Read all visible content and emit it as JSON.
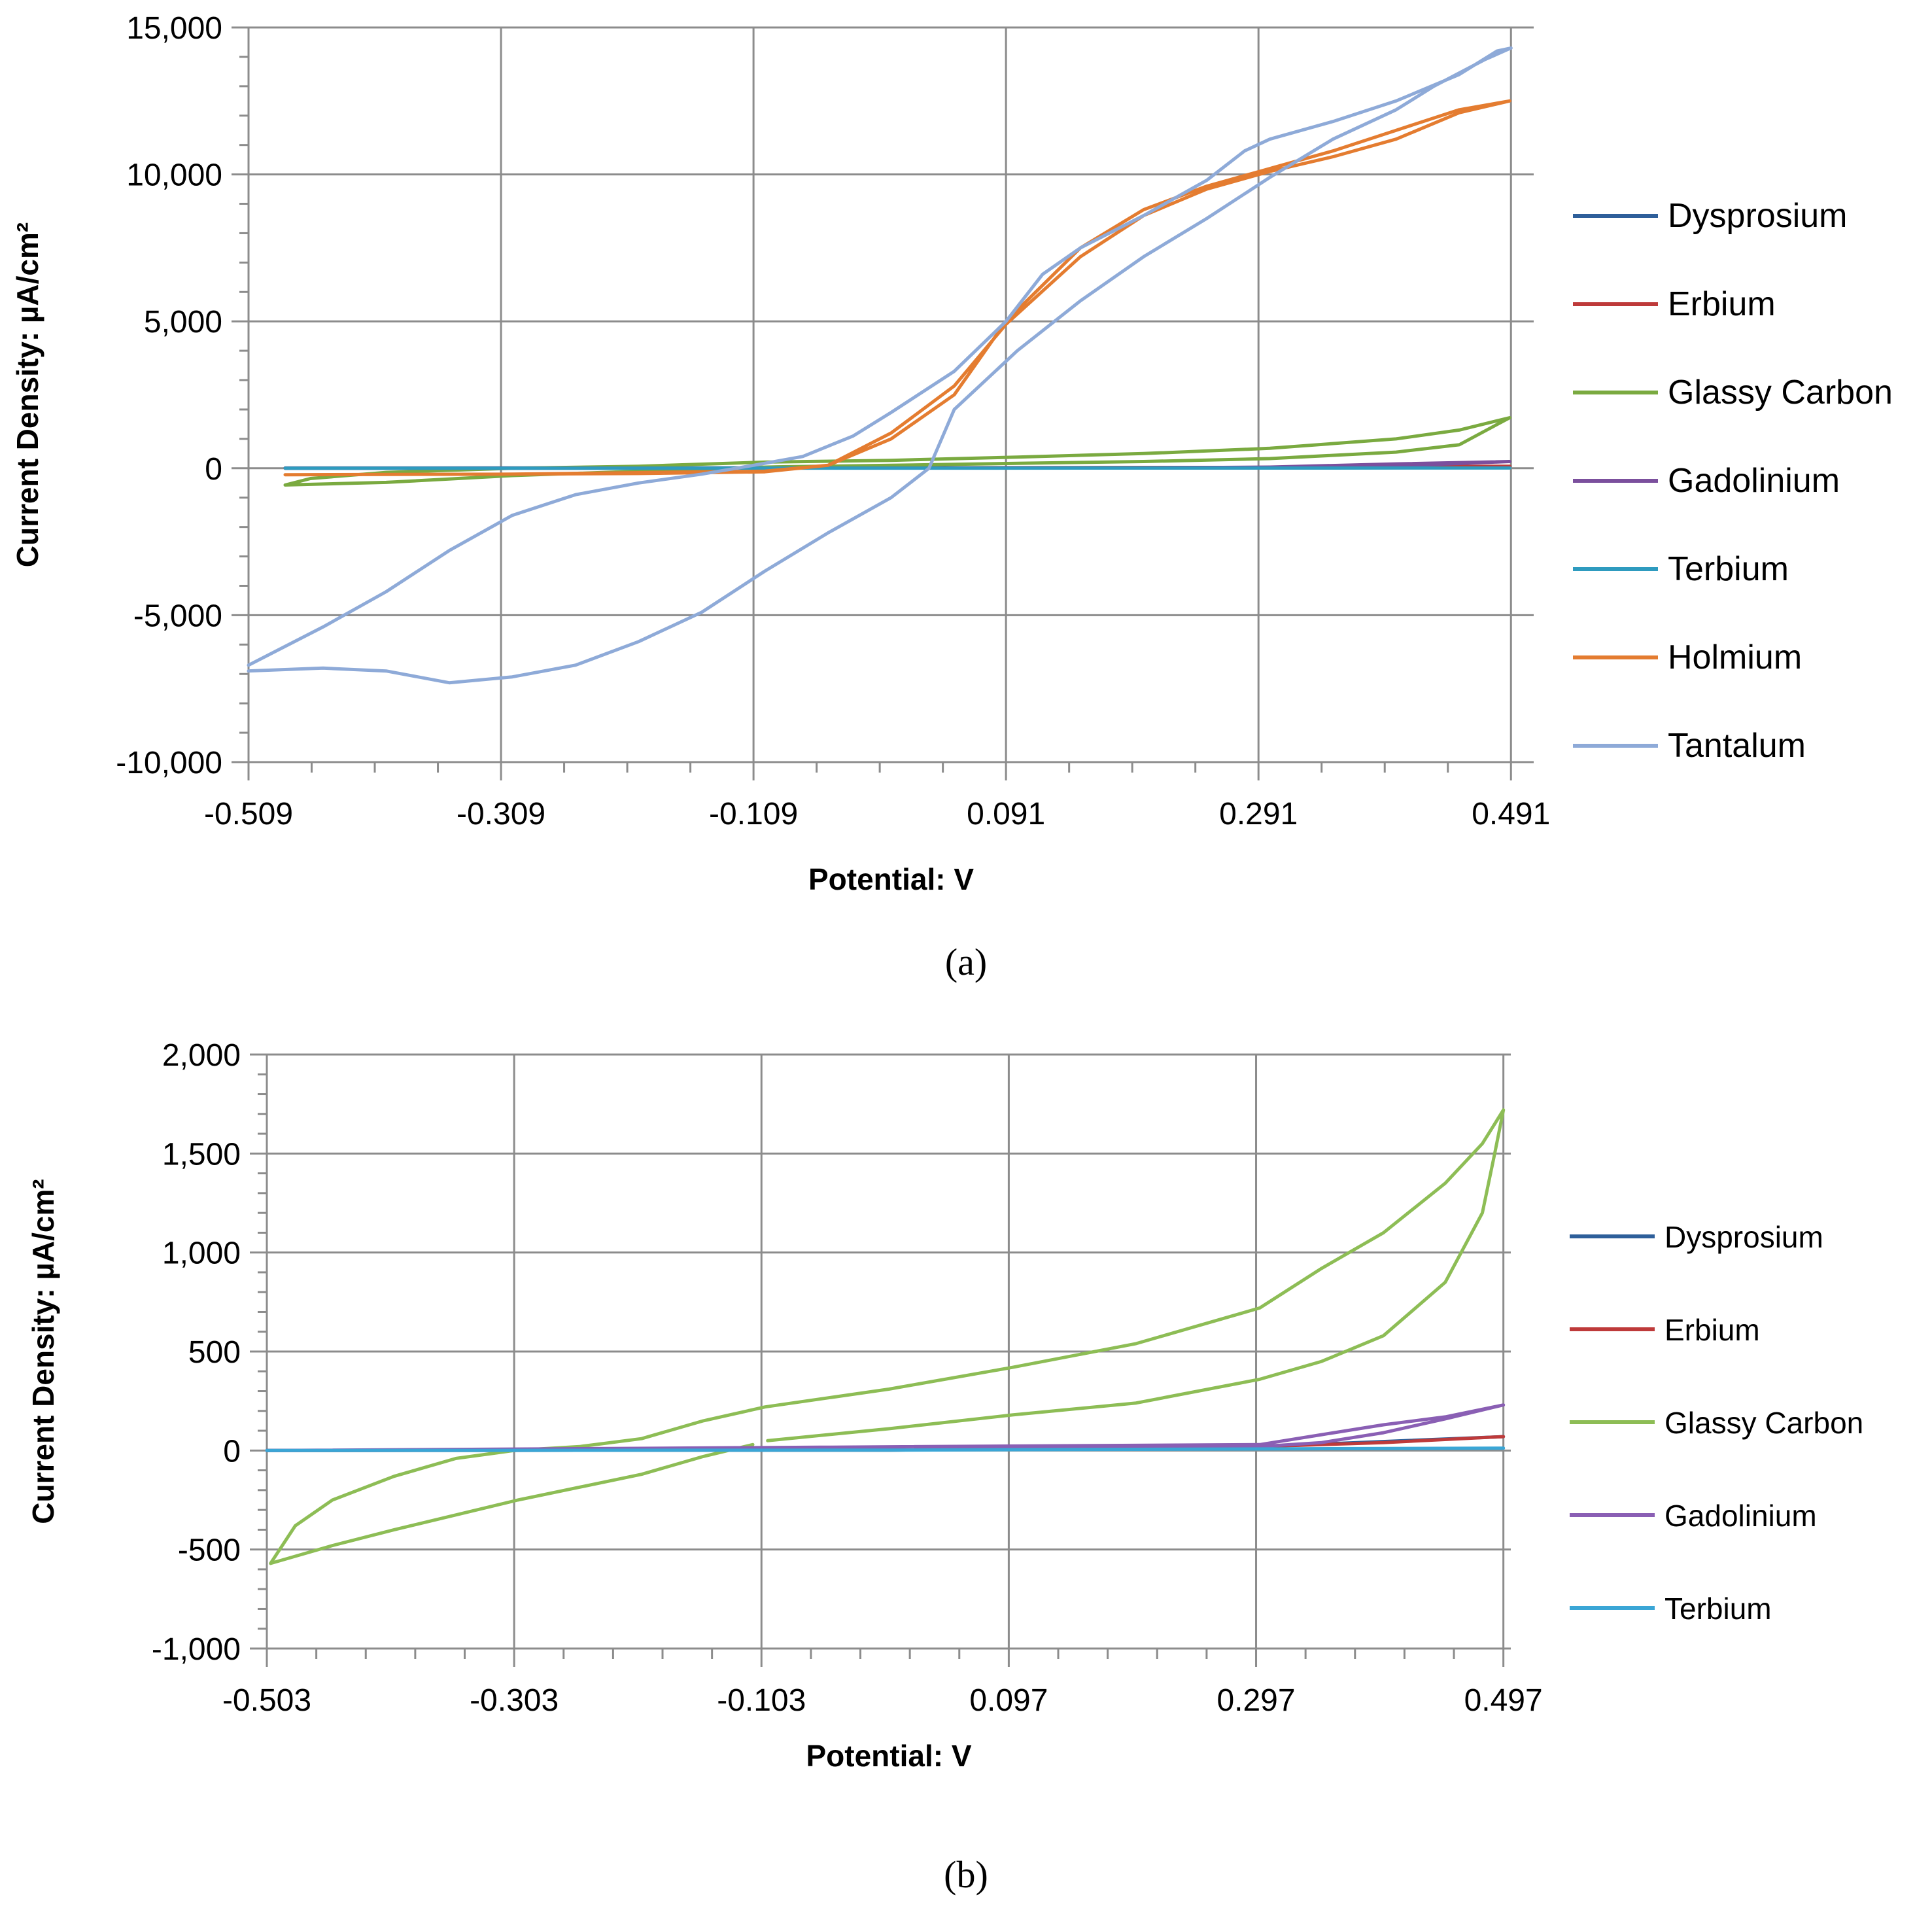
{
  "chart_data": [
    {
      "type": "line",
      "panel_label": "(a)",
      "xlabel": "Potential: V",
      "ylabel": "Current Density: µA/cm²",
      "xlim": [
        -0.509,
        0.509
      ],
      "ylim": [
        -10000,
        15000
      ],
      "x_ticks": [
        -0.509,
        -0.309,
        -0.109,
        0.091,
        0.291,
        0.491
      ],
      "x_tick_labels": [
        "-0.509",
        "-0.309",
        "-0.109",
        "0.091",
        "0.291",
        "0.491"
      ],
      "y_ticks": [
        -10000,
        -5000,
        0,
        5000,
        10000,
        15000
      ],
      "y_tick_labels": [
        "-10,000",
        "-5,000",
        "0",
        "5,000",
        "10,000",
        "15,000"
      ],
      "grid": true,
      "legend_position": "right",
      "series": [
        {
          "name": "Dysprosium",
          "color": "#2e5f9a",
          "points": [
            [
              -0.48,
              10
            ],
            [
              0.0,
              15
            ],
            [
              0.3,
              30
            ],
            [
              0.49,
              60
            ]
          ]
        },
        {
          "name": "Erbium",
          "color": "#be3a3a",
          "points": [
            [
              -0.48,
              0
            ],
            [
              0.0,
              10
            ],
            [
              0.3,
              30
            ],
            [
              0.49,
              70
            ]
          ]
        },
        {
          "name": "Glassy Carbon",
          "color": "#7aaa40",
          "points": [
            [
              -0.48,
              -570
            ],
            [
              -0.4,
              -480
            ],
            [
              -0.3,
              -250
            ],
            [
              -0.2,
              -100
            ],
            [
              -0.11,
              30
            ],
            [
              -0.09,
              50
            ],
            [
              0.0,
              100
            ],
            [
              0.1,
              170
            ],
            [
              0.2,
              230
            ],
            [
              0.3,
              330
            ],
            [
              0.4,
              550
            ],
            [
              0.45,
              800
            ],
            [
              0.49,
              1720
            ],
            [
              0.45,
              1300
            ],
            [
              0.4,
              1000
            ],
            [
              0.3,
              680
            ],
            [
              0.2,
              500
            ],
            [
              0.1,
              380
            ],
            [
              0.0,
              270
            ],
            [
              -0.1,
              210
            ],
            [
              -0.2,
              70
            ],
            [
              -0.3,
              0
            ],
            [
              -0.4,
              -140
            ],
            [
              -0.46,
              -350
            ],
            [
              -0.48,
              -570
            ]
          ]
        },
        {
          "name": "Gadolinium",
          "color": "#7b4f9d",
          "points": [
            [
              -0.48,
              0
            ],
            [
              0.2,
              10
            ],
            [
              0.3,
              30
            ],
            [
              0.4,
              80
            ],
            [
              0.49,
              230
            ],
            [
              0.4,
              150
            ],
            [
              0.3,
              40
            ],
            [
              0.2,
              10
            ],
            [
              -0.48,
              0
            ]
          ]
        },
        {
          "name": "Terbium",
          "color": "#2e9bbf",
          "points": [
            [
              -0.48,
              0
            ],
            [
              0.0,
              5
            ],
            [
              0.49,
              10
            ]
          ]
        },
        {
          "name": "Holmium",
          "color": "#e47c30",
          "points": [
            [
              -0.48,
              -220
            ],
            [
              -0.3,
              -200
            ],
            [
              -0.2,
              -180
            ],
            [
              -0.1,
              -120
            ],
            [
              -0.05,
              100
            ],
            [
              0.0,
              1000
            ],
            [
              0.05,
              2500
            ],
            [
              0.091,
              5000
            ],
            [
              0.15,
              7500
            ],
            [
              0.2,
              8800
            ],
            [
              0.25,
              9600
            ],
            [
              0.3,
              10200
            ],
            [
              0.35,
              10800
            ],
            [
              0.4,
              11500
            ],
            [
              0.45,
              12200
            ],
            [
              0.49,
              12500
            ],
            [
              0.45,
              12100
            ],
            [
              0.4,
              11200
            ],
            [
              0.35,
              10600
            ],
            [
              0.3,
              10100
            ],
            [
              0.25,
              9500
            ],
            [
              0.2,
              8600
            ],
            [
              0.15,
              7200
            ],
            [
              0.091,
              4900
            ],
            [
              0.05,
              2800
            ],
            [
              0.0,
              1200
            ],
            [
              -0.05,
              100
            ],
            [
              -0.1,
              -100
            ],
            [
              -0.2,
              -150
            ],
            [
              -0.3,
              -200
            ],
            [
              -0.48,
              -220
            ]
          ]
        },
        {
          "name": "Tantalum",
          "color": "#8eaad8",
          "points": [
            [
              -0.509,
              -6700
            ],
            [
              -0.45,
              -5400
            ],
            [
              -0.4,
              -4200
            ],
            [
              -0.35,
              -2800
            ],
            [
              -0.3,
              -1600
            ],
            [
              -0.25,
              -900
            ],
            [
              -0.2,
              -500
            ],
            [
              -0.15,
              -200
            ],
            [
              -0.109,
              100
            ],
            [
              -0.07,
              400
            ],
            [
              -0.03,
              1100
            ],
            [
              0.0,
              1900
            ],
            [
              0.05,
              3300
            ],
            [
              0.091,
              5000
            ],
            [
              0.12,
              6600
            ],
            [
              0.15,
              7500
            ],
            [
              0.2,
              8600
            ],
            [
              0.25,
              9800
            ],
            [
              0.28,
              10800
            ],
            [
              0.3,
              11200
            ],
            [
              0.35,
              11800
            ],
            [
              0.4,
              12500
            ],
            [
              0.45,
              13400
            ],
            [
              0.48,
              14200
            ],
            [
              0.491,
              14300
            ],
            [
              0.47,
              13900
            ],
            [
              0.43,
              13000
            ],
            [
              0.4,
              12200
            ],
            [
              0.35,
              11200
            ],
            [
              0.3,
              9900
            ],
            [
              0.25,
              8500
            ],
            [
              0.2,
              7200
            ],
            [
              0.15,
              5700
            ],
            [
              0.1,
              4000
            ],
            [
              0.05,
              2000
            ],
            [
              0.03,
              0
            ],
            [
              0.0,
              -1000
            ],
            [
              -0.05,
              -2200
            ],
            [
              -0.1,
              -3500
            ],
            [
              -0.15,
              -4900
            ],
            [
              -0.2,
              -5900
            ],
            [
              -0.25,
              -6700
            ],
            [
              -0.3,
              -7100
            ],
            [
              -0.35,
              -7300
            ],
            [
              -0.4,
              -6900
            ],
            [
              -0.45,
              -6800
            ],
            [
              -0.509,
              -6900
            ]
          ]
        }
      ]
    },
    {
      "type": "line",
      "panel_label": "(b)",
      "xlabel": "Potential: V",
      "ylabel": "Current Density: µA/cm²",
      "xlim": [
        -0.503,
        0.503
      ],
      "ylim": [
        -1000,
        2000
      ],
      "x_ticks": [
        -0.503,
        -0.303,
        -0.103,
        0.097,
        0.297,
        0.497
      ],
      "x_tick_labels": [
        "-0.503",
        "-0.303",
        "-0.103",
        "0.097",
        "0.297",
        "0.497"
      ],
      "y_ticks": [
        -1000,
        -500,
        0,
        500,
        1000,
        1500,
        2000
      ],
      "y_tick_labels": [
        "-1,000",
        "-500",
        "0",
        "500",
        "1,000",
        "1,500",
        "2,000"
      ],
      "grid": true,
      "legend_position": "right",
      "series": [
        {
          "name": "Dysprosium",
          "color": "#2e5f9a",
          "points": [
            [
              -0.503,
              0
            ],
            [
              0.0,
              2
            ],
            [
              0.3,
              20
            ],
            [
              0.497,
              70
            ]
          ]
        },
        {
          "name": "Erbium",
          "color": "#be3a3a",
          "points": [
            [
              -0.503,
              0
            ],
            [
              0.0,
              2
            ],
            [
              0.3,
              20
            ],
            [
              0.4,
              40
            ],
            [
              0.497,
              70
            ]
          ]
        },
        {
          "name": "Glassy Carbon",
          "color": "#8dbd55",
          "points": [
            [
              -0.098,
              50
            ],
            [
              0.0,
              110
            ],
            [
              0.1,
              180
            ],
            [
              0.2,
              240
            ],
            [
              0.3,
              360
            ],
            [
              0.35,
              450
            ],
            [
              0.4,
              580
            ],
            [
              0.45,
              850
            ],
            [
              0.48,
              1200
            ],
            [
              0.49,
              1500
            ],
            [
              0.497,
              1720
            ],
            [
              0.48,
              1550
            ],
            [
              0.45,
              1350
            ],
            [
              0.4,
              1100
            ],
            [
              0.35,
              920
            ],
            [
              0.3,
              720
            ],
            [
              0.2,
              540
            ],
            [
              0.1,
              420
            ],
            [
              0.0,
              310
            ],
            [
              -0.1,
              220
            ],
            [
              -0.15,
              150
            ],
            [
              -0.2,
              60
            ],
            [
              -0.25,
              20
            ],
            [
              -0.303,
              0
            ],
            [
              -0.35,
              -40
            ],
            [
              -0.4,
              -130
            ],
            [
              -0.45,
              -250
            ],
            [
              -0.48,
              -380
            ],
            [
              -0.5,
              -570
            ],
            [
              -0.45,
              -480
            ],
            [
              -0.4,
              -400
            ],
            [
              -0.3,
              -250
            ],
            [
              -0.2,
              -120
            ],
            [
              -0.15,
              -30
            ],
            [
              -0.11,
              30
            ]
          ]
        },
        {
          "name": "Gadolinium",
          "color": "#8a5fb4",
          "points": [
            [
              -0.503,
              0
            ],
            [
              0.3,
              30
            ],
            [
              0.35,
              80
            ],
            [
              0.4,
              130
            ],
            [
              0.45,
              170
            ],
            [
              0.497,
              230
            ],
            [
              0.45,
              160
            ],
            [
              0.4,
              90
            ],
            [
              0.35,
              40
            ],
            [
              0.3,
              20
            ],
            [
              -0.503,
              0
            ]
          ]
        },
        {
          "name": "Terbium",
          "color": "#3aa6d6",
          "points": [
            [
              -0.503,
              0
            ],
            [
              0.0,
              2
            ],
            [
              0.497,
              12
            ]
          ]
        }
      ]
    }
  ]
}
